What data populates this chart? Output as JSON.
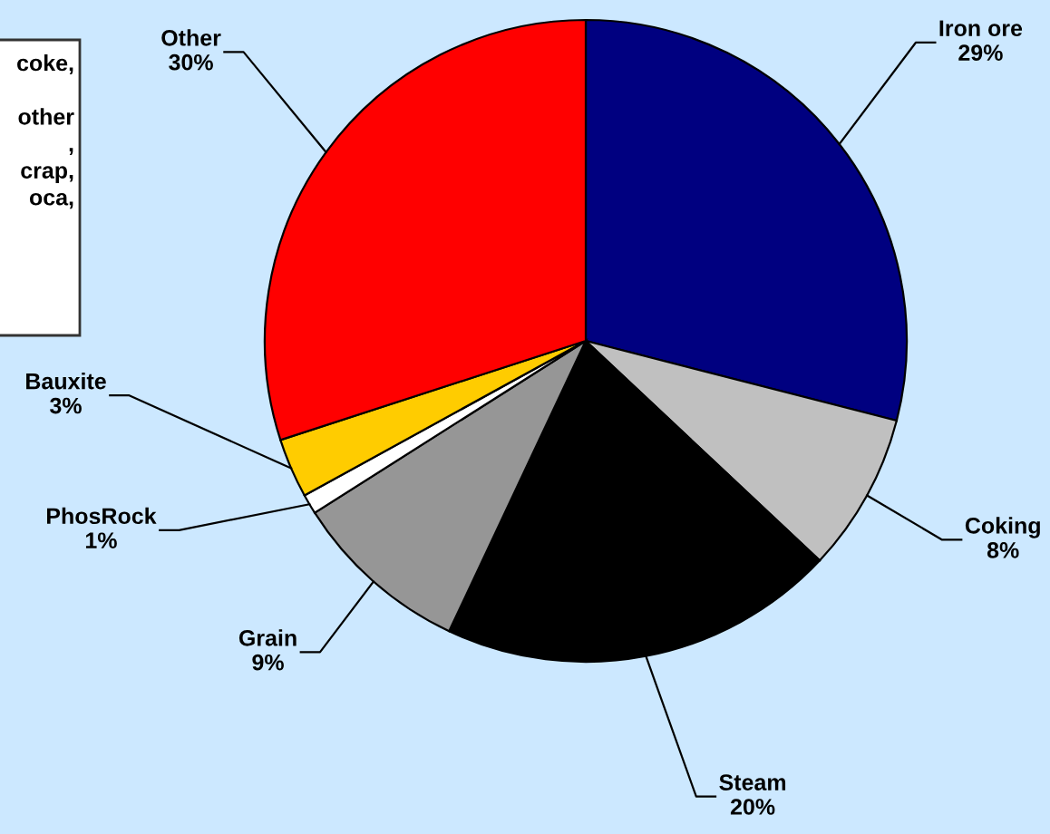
{
  "chart_data": {
    "type": "pie",
    "categories": [
      "Iron ore",
      "Coking",
      "Steam",
      "Grain",
      "PhosRock",
      "Bauxite",
      "Other"
    ],
    "values": [
      29,
      8,
      20,
      9,
      1,
      3,
      30
    ],
    "colors": [
      "#000080",
      "#c0c0c0",
      "#000000",
      "#969696",
      "#ffffff",
      "#ffcc00",
      "#ff0000"
    ],
    "value_labels": [
      "29%",
      "8%",
      "20%",
      "9%",
      "1%",
      "3%",
      "30%"
    ],
    "annotations": [
      "coke,\n\nother\n,\ncrap,\noca,"
    ]
  }
}
